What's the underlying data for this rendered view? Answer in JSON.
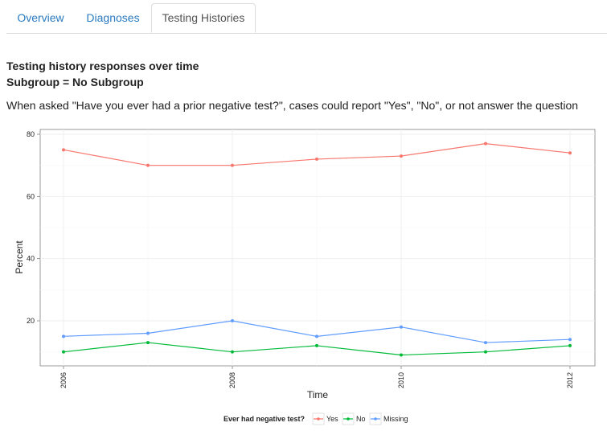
{
  "tabs": [
    {
      "label": "Overview",
      "active": false
    },
    {
      "label": "Diagnoses",
      "active": false
    },
    {
      "label": "Testing Histories",
      "active": true
    }
  ],
  "content": {
    "heading": "Testing history responses over time",
    "subheading": "Subgroup = No Subgroup",
    "description": "When asked \"Have you ever had a prior negative test?\", cases could report \"Yes\", \"No\", or not answer the question"
  },
  "colors": {
    "link": "#2a7bc1",
    "yes": "#f8766d",
    "no": "#00ba38",
    "missing": "#619cff"
  },
  "chart_data": {
    "type": "line",
    "xlabel": "Time",
    "ylabel": "Percent",
    "x": [
      2006,
      2007,
      2008,
      2009,
      2010,
      2011,
      2012
    ],
    "x_ticks": [
      "2006",
      "2008",
      "2010",
      "2012"
    ],
    "y_ticks": [
      "20",
      "40",
      "60",
      "80"
    ],
    "xlim": [
      2006,
      2012
    ],
    "ylim": [
      8,
      80
    ],
    "grid": true,
    "legend_title": "Ever had negative test?",
    "legend_position": "bottom",
    "series": [
      {
        "name": "Yes",
        "color": "#f8766d",
        "values": [
          75,
          70,
          70,
          72,
          73,
          77,
          74
        ]
      },
      {
        "name": "No",
        "color": "#00ba38",
        "values": [
          10,
          13,
          10,
          12,
          9,
          10,
          12
        ]
      },
      {
        "name": "Missing",
        "color": "#619cff",
        "values": [
          15,
          16,
          20,
          15,
          18,
          13,
          14
        ]
      }
    ]
  }
}
